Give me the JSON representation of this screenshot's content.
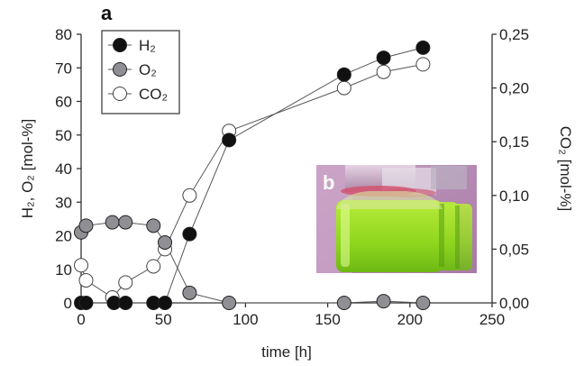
{
  "chart_data": {
    "type": "line",
    "panel_label": "a",
    "inset_label": "b",
    "xlabel": "time [h]",
    "ylabel_left": "H₂, O₂ [mol-%]",
    "ylabel_right": "CO₂ [mol-%]",
    "xlim": [
      0,
      250
    ],
    "ylim_left": [
      0,
      80
    ],
    "ylim_right": [
      0,
      0.25
    ],
    "x_ticks": [
      "0",
      "50",
      "100",
      "150",
      "200",
      "250"
    ],
    "y_left_ticks": [
      "0",
      "10",
      "20",
      "30",
      "40",
      "50",
      "60",
      "70",
      "80"
    ],
    "y_right_ticks": [
      "0,00",
      "0,05",
      "0,10",
      "0,15",
      "0,20",
      "0,25"
    ],
    "grid": false,
    "legend_position": "top-left",
    "series": [
      {
        "name": "H₂",
        "axis": "left",
        "marker_fill": "#111111",
        "x": [
          0,
          3,
          20,
          27,
          44,
          51,
          66,
          90,
          160,
          184,
          208
        ],
        "y": [
          0,
          0,
          0,
          0,
          0,
          0,
          20.5,
          48.5,
          68,
          73,
          76
        ]
      },
      {
        "name": "O₂",
        "axis": "left",
        "marker_fill": "#8f8f94",
        "x": [
          0,
          3,
          19,
          27,
          44,
          51,
          66,
          90,
          160,
          184,
          208
        ],
        "y": [
          21,
          23,
          24,
          24,
          23,
          18,
          3,
          0,
          0,
          0.5,
          0
        ]
      },
      {
        "name": "CO₂",
        "axis": "right",
        "marker_fill": "#ffffff",
        "x": [
          0,
          3,
          19,
          27,
          44,
          51,
          66,
          90,
          160,
          184,
          208
        ],
        "y": [
          0.035,
          0.021,
          0.005,
          0.019,
          0.034,
          0.05,
          0.1,
          0.16,
          0.2,
          0.215,
          0.222
        ]
      }
    ]
  }
}
